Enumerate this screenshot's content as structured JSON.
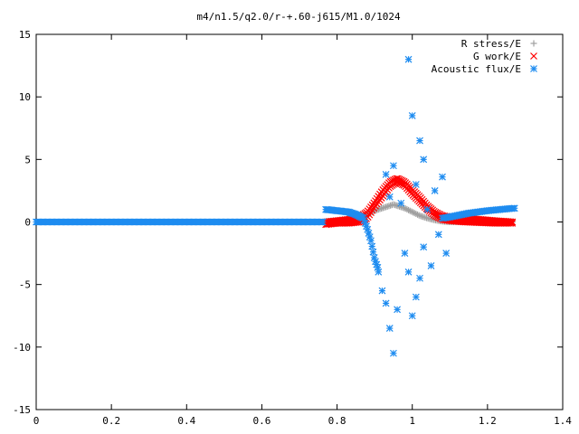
{
  "chart_data": {
    "type": "scatter",
    "title": "m4/n1.5/q2.0/r-+.60-j615/M1.0/1024",
    "xlabel": "",
    "ylabel": "",
    "xlim": [
      0,
      1.4
    ],
    "ylim": [
      -15,
      15
    ],
    "x_ticks": [
      "0",
      "0.2",
      "0.4",
      "0.6",
      "0.8",
      "1",
      "1.2",
      "1.4"
    ],
    "y_ticks": [
      "15",
      "10",
      "5",
      "0",
      "-5",
      "-10",
      "-15"
    ],
    "legend_position": "top-right",
    "grid": false,
    "series": [
      {
        "name": "R stress/E",
        "marker": "plus",
        "color": "#a0a0a0",
        "x": [
          0.77,
          0.8,
          0.83,
          0.86,
          0.88,
          0.9,
          0.92,
          0.94,
          0.95,
          0.96,
          0.98,
          1.0,
          1.02,
          1.04,
          1.06,
          1.08,
          1.1,
          1.14,
          1.18,
          1.22,
          1.27
        ],
        "y": [
          0.05,
          0.1,
          0.2,
          0.4,
          0.6,
          0.9,
          1.1,
          1.3,
          1.4,
          1.3,
          1.1,
          0.8,
          0.5,
          0.3,
          0.15,
          0.05,
          0.0,
          0.0,
          0.0,
          0.0,
          0.0
        ]
      },
      {
        "name": "G work/E",
        "marker": "cross",
        "color": "#ff0000",
        "x": [
          0.77,
          0.8,
          0.83,
          0.86,
          0.88,
          0.9,
          0.92,
          0.94,
          0.96,
          0.98,
          1.0,
          1.02,
          1.04,
          1.06,
          1.08,
          1.1,
          1.14,
          1.18,
          1.22,
          1.27
        ],
        "y": [
          0.0,
          0.1,
          0.2,
          0.4,
          0.8,
          1.6,
          2.5,
          3.2,
          3.5,
          3.2,
          2.6,
          2.0,
          1.3,
          0.8,
          0.5,
          0.4,
          0.3,
          0.2,
          0.1,
          0.0
        ],
        "outline_y": [
          -0.2,
          -0.1,
          -0.1,
          0.0,
          0.3,
          1.2,
          2.0,
          2.8,
          3.2,
          2.9,
          2.2,
          1.6,
          1.0,
          0.5,
          0.2,
          0.1,
          0.0,
          -0.05,
          -0.1,
          -0.1
        ]
      },
      {
        "name": "Acoustic flux/E",
        "marker": "star",
        "color": "#1e8cf0",
        "x": [
          0.0,
          0.05,
          0.1,
          0.15,
          0.2,
          0.25,
          0.3,
          0.35,
          0.4,
          0.45,
          0.5,
          0.55,
          0.6,
          0.65,
          0.7,
          0.75,
          0.77,
          0.8,
          0.83,
          0.85,
          0.87,
          0.88,
          0.89,
          0.9,
          0.91,
          0.92,
          0.93,
          0.93,
          0.94,
          0.94,
          0.95,
          0.95,
          0.96,
          0.97,
          0.98,
          0.99,
          0.99,
          1.0,
          1.0,
          1.01,
          1.01,
          1.02,
          1.02,
          1.03,
          1.03,
          1.04,
          1.05,
          1.06,
          1.07,
          1.08,
          1.09,
          1.1,
          1.12,
          1.15,
          1.18,
          1.21,
          1.24,
          1.27
        ],
        "y": [
          0.0,
          0.0,
          0.0,
          0.0,
          0.0,
          0.0,
          0.0,
          0.0,
          0.0,
          0.0,
          0.0,
          0.0,
          0.0,
          0.0,
          0.0,
          0.0,
          1.0,
          0.9,
          0.8,
          0.6,
          0.3,
          -0.5,
          -1.5,
          -3.0,
          -4.0,
          -5.5,
          -6.5,
          3.8,
          -8.5,
          2.0,
          -10.5,
          4.5,
          -7.0,
          1.5,
          -2.5,
          13.0,
          -4.0,
          8.5,
          -7.5,
          3.0,
          -6.0,
          6.5,
          -4.5,
          5.0,
          -2.0,
          1.0,
          -3.5,
          2.5,
          -1.0,
          3.6,
          -2.5,
          0.4,
          0.5,
          0.7,
          0.8,
          0.9,
          1.0,
          1.1
        ]
      }
    ]
  }
}
